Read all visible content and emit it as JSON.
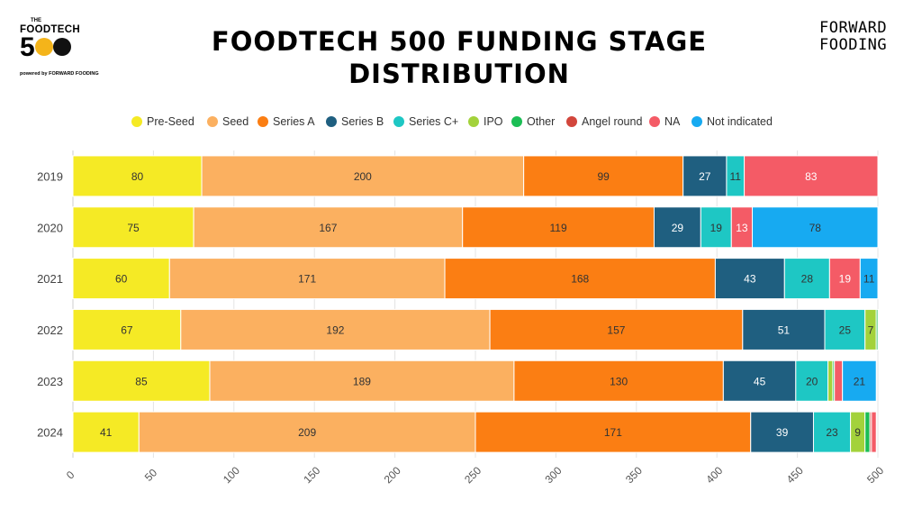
{
  "title": "FOODTECH 500 FUNDING STAGE DISTRIBUTION",
  "logo_left": {
    "the": "THE",
    "word": "FOODTECH",
    "number": "500",
    "powered": "powered by FORWARD FOODING"
  },
  "logo_right": {
    "line1": "FORWARD",
    "line2": "FOODING"
  },
  "chart_data": {
    "type": "bar",
    "orientation": "horizontal",
    "stacked": true,
    "categories": [
      "2019",
      "2020",
      "2021",
      "2022",
      "2023",
      "2024"
    ],
    "series": [
      {
        "name": "Pre-Seed",
        "color": "#f5ea25",
        "values": [
          80,
          75,
          60,
          67,
          85,
          41
        ]
      },
      {
        "name": "Seed",
        "color": "#fbb060",
        "values": [
          200,
          167,
          171,
          192,
          189,
          209
        ]
      },
      {
        "name": "Series A",
        "color": "#fb7e13",
        "values": [
          99,
          119,
          168,
          157,
          130,
          171
        ]
      },
      {
        "name": "Series B",
        "color": "#1f5f80",
        "values": [
          27,
          29,
          43,
          51,
          45,
          39
        ]
      },
      {
        "name": "Series C+",
        "color": "#1ec7c4",
        "values": [
          11,
          19,
          28,
          25,
          20,
          23
        ]
      },
      {
        "name": "IPO",
        "color": "#a3d23b",
        "values": [
          0,
          0,
          0,
          7,
          3,
          9
        ]
      },
      {
        "name": "Other",
        "color": "#1cbe55",
        "values": [
          0,
          0,
          0,
          1,
          1,
          3
        ]
      },
      {
        "name": "Angel round",
        "color": "#d2463c",
        "values": [
          0,
          0,
          0,
          0,
          0,
          1
        ]
      },
      {
        "name": "NA",
        "color": "#f45b66",
        "values": [
          83,
          13,
          19,
          0,
          5,
          3
        ]
      },
      {
        "name": "Not indicated",
        "color": "#17aaf1",
        "values": [
          0,
          78,
          11,
          0,
          21,
          0
        ]
      }
    ],
    "xlim": [
      0,
      500
    ],
    "xticks": [
      0,
      50,
      100,
      150,
      200,
      250,
      300,
      350,
      400,
      450,
      500
    ],
    "grid": true,
    "legend_position": "top"
  }
}
